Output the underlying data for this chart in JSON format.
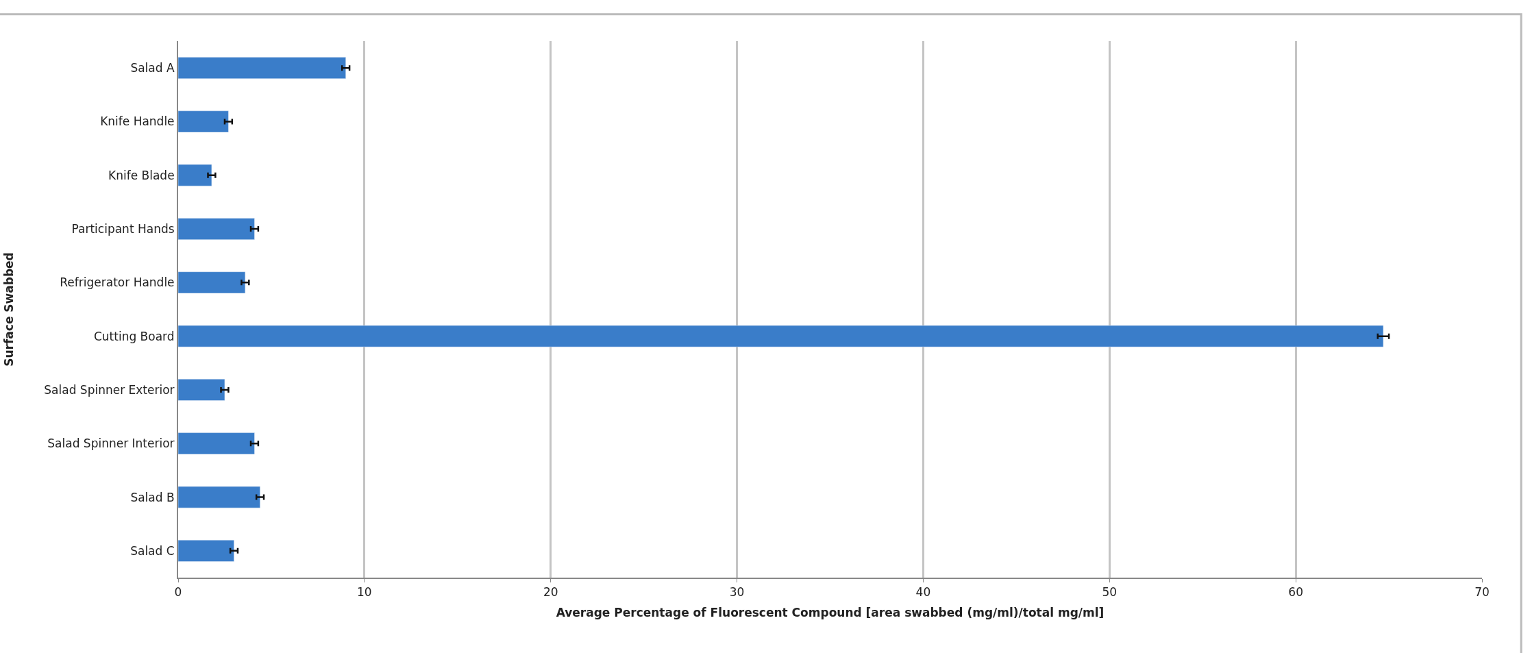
{
  "chart_data": {
    "type": "bar",
    "orientation": "horizontal",
    "xlabel": "Average Percentage of Fluorescent Compound [area swabbed (mg/ml)/total mg/ml]",
    "ylabel": "Surface Swabbed",
    "categories": [
      "Salad A",
      "Knife Handle",
      "Knife Blade",
      "Participant Hands",
      "Refrigerator Handle",
      "Cutting Board",
      "Salad Spinner Exterior",
      "Salad Spinner Interior",
      "Salad B",
      "Salad C"
    ],
    "values": [
      9.0,
      2.7,
      1.8,
      4.1,
      3.6,
      64.7,
      2.5,
      4.1,
      4.4,
      3.0
    ],
    "errors": [
      0.2,
      0.2,
      0.2,
      0.2,
      0.2,
      0.3,
      0.2,
      0.2,
      0.2,
      0.2
    ],
    "color": "#3a7dc9",
    "xlim": [
      0,
      70
    ],
    "xticks": [
      0,
      10,
      20,
      30,
      40,
      50,
      60,
      70
    ],
    "grid": "x",
    "legend": false
  }
}
